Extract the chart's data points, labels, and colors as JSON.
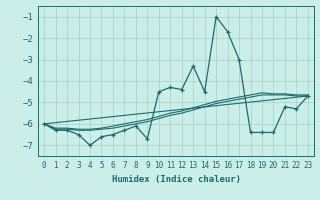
{
  "xlabel": "Humidex (Indice chaleur)",
  "background_color": "#cceee8",
  "grid_color": "#aad4cc",
  "line_color": "#1a6b6b",
  "xlim": [
    -0.5,
    23.5
  ],
  "ylim": [
    -7.5,
    -0.5
  ],
  "yticks": [
    -7,
    -6,
    -5,
    -4,
    -3,
    -2,
    -1
  ],
  "xticks": [
    0,
    1,
    2,
    3,
    4,
    5,
    6,
    7,
    8,
    9,
    10,
    11,
    12,
    13,
    14,
    15,
    16,
    17,
    18,
    19,
    20,
    21,
    22,
    23
  ],
  "main_x": [
    0,
    1,
    2,
    3,
    4,
    5,
    6,
    7,
    8,
    9,
    10,
    11,
    12,
    13,
    14,
    15,
    16,
    17,
    18,
    19,
    20,
    21,
    22,
    23
  ],
  "main_y": [
    -6.0,
    -6.3,
    -6.3,
    -6.5,
    -7.0,
    -6.6,
    -6.5,
    -6.3,
    -6.1,
    -6.7,
    -4.5,
    -4.3,
    -4.4,
    -3.3,
    -4.5,
    -1.0,
    -1.7,
    -3.0,
    -6.4,
    -6.4,
    -6.4,
    -5.2,
    -5.3,
    -4.7
  ],
  "line2_x": [
    0,
    1,
    2,
    3,
    4,
    5,
    6,
    7,
    8,
    9,
    10,
    11,
    12,
    13,
    14,
    15,
    16,
    17,
    18,
    19,
    20,
    21,
    22,
    23
  ],
  "line2_y": [
    -6.0,
    -6.25,
    -6.25,
    -6.3,
    -6.3,
    -6.25,
    -6.2,
    -6.1,
    -6.0,
    -5.9,
    -5.75,
    -5.6,
    -5.5,
    -5.35,
    -5.2,
    -5.05,
    -4.95,
    -4.85,
    -4.75,
    -4.65,
    -4.65,
    -4.65,
    -4.7,
    -4.7
  ],
  "line3_x": [
    0,
    1,
    2,
    3,
    4,
    5,
    6,
    7,
    8,
    9,
    10,
    11,
    12,
    13,
    14,
    15,
    16,
    17,
    18,
    19,
    20,
    21,
    22,
    23
  ],
  "line3_y": [
    -6.0,
    -6.2,
    -6.2,
    -6.25,
    -6.25,
    -6.2,
    -6.1,
    -6.0,
    -5.9,
    -5.8,
    -5.65,
    -5.5,
    -5.4,
    -5.25,
    -5.1,
    -4.95,
    -4.85,
    -4.75,
    -4.65,
    -4.55,
    -4.6,
    -4.6,
    -4.65,
    -4.65
  ],
  "line4_x": [
    0,
    23
  ],
  "line4_y": [
    -6.0,
    -4.7
  ]
}
